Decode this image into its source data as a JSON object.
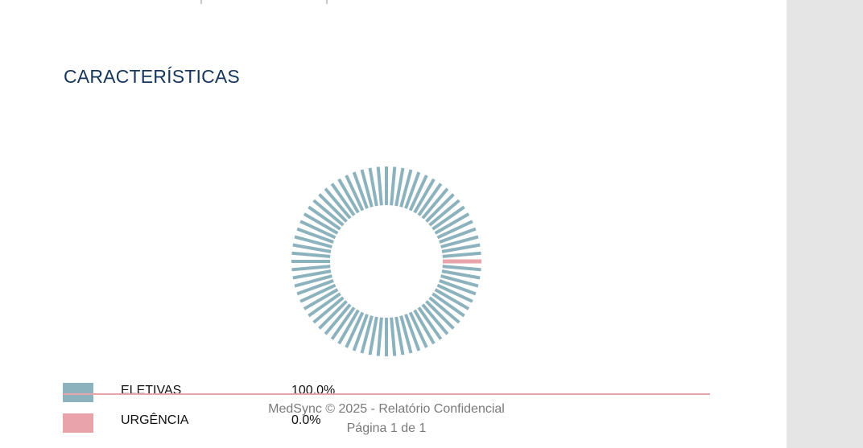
{
  "section": {
    "title": "CARACTERÍSTICAS"
  },
  "colors": {
    "eletivas": "#8cb3bd",
    "urgencia": "#e8a3ab",
    "title": "#16365c"
  },
  "chart_data": {
    "type": "pie",
    "categories": [
      "ELETIVAS",
      "URGÊNCIA"
    ],
    "values": [
      100.0,
      0.0
    ],
    "labels": [
      "100.0%",
      "0.0%"
    ],
    "legend": "bottom-left"
  },
  "legend": [
    {
      "label": "ELETIVAS",
      "value": "100.0%"
    },
    {
      "label": "URGÊNCIA",
      "value": "0.0%"
    }
  ],
  "footer": {
    "copyright": "MedSync © 2025 - Relatório Confidencial",
    "page": "Página 1 de 1"
  }
}
